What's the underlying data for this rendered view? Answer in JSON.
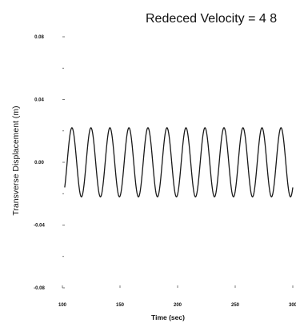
{
  "chart_data": {
    "type": "line",
    "title": "Redeced Velocity = 4 8",
    "xlabel": "Time (sec)",
    "ylabel": "Transverse Displacement (m)",
    "xlim": [
      100,
      300
    ],
    "ylim": [
      -0.08,
      0.08
    ],
    "x_ticks": [
      100,
      150,
      200,
      250,
      300
    ],
    "y_ticks": [
      0.08,
      0.04,
      0.0,
      -0.04,
      -0.08
    ],
    "x_tick_labels": [
      "100",
      "150",
      "200",
      "250",
      "300"
    ],
    "y_tick_labels": [
      "0.08",
      "0.04",
      "0.00",
      "-0.04",
      "-0.08"
    ],
    "grid": false,
    "series": [
      {
        "amplitude": 0.022,
        "period": 16.5,
        "t_start": 102,
        "t_end": 300,
        "y_start": -0.016
      }
    ]
  }
}
